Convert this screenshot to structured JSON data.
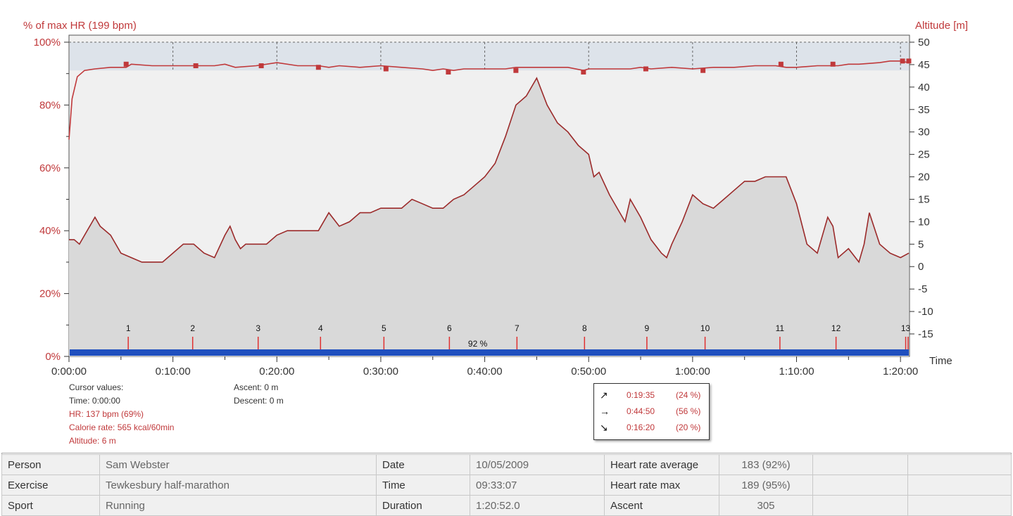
{
  "chart_data": {
    "type": "line",
    "left_axis": {
      "label": "% of max HR (199 bpm)",
      "ticks": [
        "0%",
        "20%",
        "40%",
        "60%",
        "80%",
        "100%"
      ],
      "range": [
        0,
        100
      ]
    },
    "right_axis": {
      "label": "Altitude [m]",
      "ticks": [
        "-15",
        "-10",
        "-5",
        "0",
        "5",
        "10",
        "15",
        "20",
        "25",
        "30",
        "35",
        "40",
        "45",
        "50"
      ],
      "range": [
        -20,
        50
      ]
    },
    "x_axis": {
      "label": "Time",
      "ticks": [
        "0:00:00",
        "0:10:00",
        "0:20:00",
        "0:30:00",
        "0:40:00",
        "0:50:00",
        "1:00:00",
        "1:10:00",
        "1:20:00"
      ],
      "range_minutes": [
        0,
        80.87
      ]
    },
    "hr_zone_band": {
      "from_pct": 91,
      "to_pct": 100,
      "label": "92 %"
    },
    "hr_series": {
      "name": "HR",
      "color": "#c0393b",
      "x_minutes": [
        0,
        0.3,
        0.8,
        1.5,
        2.5,
        4,
        5.5,
        6,
        8,
        10,
        12,
        14,
        15,
        16,
        18,
        20,
        22,
        24,
        25,
        26,
        28,
        30,
        32,
        34,
        35,
        36,
        37,
        38,
        40,
        42,
        43,
        45,
        48,
        49.5,
        50,
        52,
        54,
        55,
        56,
        58,
        60,
        62,
        64,
        66,
        68,
        69,
        70,
        72,
        74,
        75,
        76,
        78,
        79,
        80,
        80.8
      ],
      "values_pct": [
        69,
        82,
        89,
        91,
        91.5,
        92,
        92,
        93,
        92.5,
        92.5,
        92.5,
        92.5,
        93,
        92,
        92.5,
        93.5,
        92.5,
        92.5,
        92,
        92.5,
        92,
        92.5,
        92,
        91.5,
        91,
        91.5,
        91,
        91.5,
        91.5,
        91.5,
        92,
        92,
        92,
        91,
        91.5,
        91.5,
        91.5,
        92,
        91.5,
        92,
        91.5,
        92,
        92,
        92.5,
        92.5,
        92,
        92,
        92.5,
        92.5,
        93,
        93,
        93.5,
        94,
        94,
        93.5
      ],
      "lap_marks_minutes": [
        5.5,
        12.2,
        18.5,
        24,
        30.5,
        36.5,
        43,
        49.5,
        55.5,
        61,
        68.5,
        73.5,
        80.2,
        80.8
      ],
      "lap_marks_pct": [
        93,
        92.5,
        92.5,
        92,
        91.5,
        90.5,
        91,
        90.5,
        91.5,
        91,
        93,
        93,
        94,
        94
      ]
    },
    "altitude_series": {
      "name": "Altitude",
      "color": "#9b2a2a",
      "x_minutes": [
        0,
        0.5,
        1,
        2,
        2.5,
        3,
        4,
        5,
        6,
        7,
        7.5,
        8,
        9,
        10,
        11,
        12,
        13,
        14,
        15,
        15.5,
        16,
        16.5,
        17,
        18,
        19,
        20,
        21,
        22,
        23,
        24,
        25,
        26,
        27,
        28,
        29,
        30,
        31,
        32,
        33,
        34,
        35,
        36,
        37,
        38,
        39,
        40,
        41,
        42,
        43,
        44,
        45,
        46,
        47,
        48,
        49,
        50,
        50.5,
        51,
        52,
        53,
        53.5,
        54,
        55,
        56,
        57,
        57.5,
        58,
        59,
        60,
        61,
        62,
        63,
        64,
        65,
        66,
        67,
        68,
        69,
        70,
        71,
        72,
        73,
        73.5,
        74,
        75,
        76,
        76.5,
        77,
        78,
        79,
        80,
        80.8
      ],
      "values_m": [
        6,
        6,
        5,
        9,
        11,
        9,
        7,
        3,
        2,
        1,
        1,
        1,
        1,
        3,
        5,
        5,
        3,
        2,
        7,
        9,
        6,
        4,
        5,
        5,
        5,
        7,
        8,
        8,
        8,
        8,
        12,
        9,
        10,
        12,
        12,
        13,
        13,
        13,
        15,
        14,
        13,
        13,
        15,
        16,
        18,
        20,
        23,
        29,
        36,
        38,
        42,
        36,
        32,
        30,
        27,
        25,
        20,
        21,
        16,
        12,
        10,
        15,
        11,
        6,
        3,
        2,
        5,
        10,
        16,
        14,
        13,
        15,
        17,
        19,
        19,
        20,
        20,
        20,
        14,
        5,
        3,
        11,
        9,
        2,
        4,
        1,
        5,
        12,
        5,
        3,
        2,
        3
      ],
      "fill_color": "#d9d9d9"
    },
    "laps": [
      "1",
      "2",
      "3",
      "4",
      "5",
      "6",
      "7",
      "8",
      "9",
      "10",
      "11",
      "12",
      "13"
    ],
    "lap_x_minutes": [
      5.7,
      11.9,
      18.2,
      24.2,
      30.3,
      36.6,
      43.1,
      49.6,
      55.6,
      61.2,
      68.4,
      73.8,
      80.5
    ],
    "legend": "none",
    "grid": "dashed vertical in top band"
  },
  "cursor": {
    "title": "Cursor values:",
    "time": "Time: 0:00:00",
    "hr": "HR: 137 bpm (69%)",
    "calorie": "Calorie rate: 565 kcal/60min",
    "altitude": "Altitude: 6 m"
  },
  "ascent": {
    "ascent": "Ascent: 0 m",
    "descent": "Descent: 0 m"
  },
  "zones": [
    {
      "icon": "arrow-up-right-icon",
      "glyph": "↗",
      "time": "0:19:35",
      "pct": "(24 %)"
    },
    {
      "icon": "arrow-right-icon",
      "glyph": "→",
      "time": "0:44:50",
      "pct": "(56 %)"
    },
    {
      "icon": "arrow-down-right-icon",
      "glyph": "↘",
      "time": "0:16:20",
      "pct": "(20 %)"
    }
  ],
  "info": {
    "person_label": "Person",
    "person": "Sam Webster",
    "exercise_label": "Exercise",
    "exercise": "Tewkesbury half-marathon",
    "sport_label": "Sport",
    "sport": "Running",
    "date_label": "Date",
    "date": "10/05/2009",
    "time_label": "Time",
    "time": "09:33:07",
    "duration_label": "Duration",
    "duration": "1:20:52.0",
    "hr_avg_label": "Heart rate average",
    "hr_avg": "183 (92%)",
    "hr_max_label": "Heart rate max",
    "hr_max": "189 (95%)",
    "ascent_label": "Ascent",
    "ascent": "305"
  },
  "colors": {
    "hr_line": "#c0393b",
    "altitude_line": "#9b2a2a",
    "zone_bar": "#1f4fbf",
    "band": "#dde3ea",
    "plot_bg": "#f0f0f0"
  }
}
